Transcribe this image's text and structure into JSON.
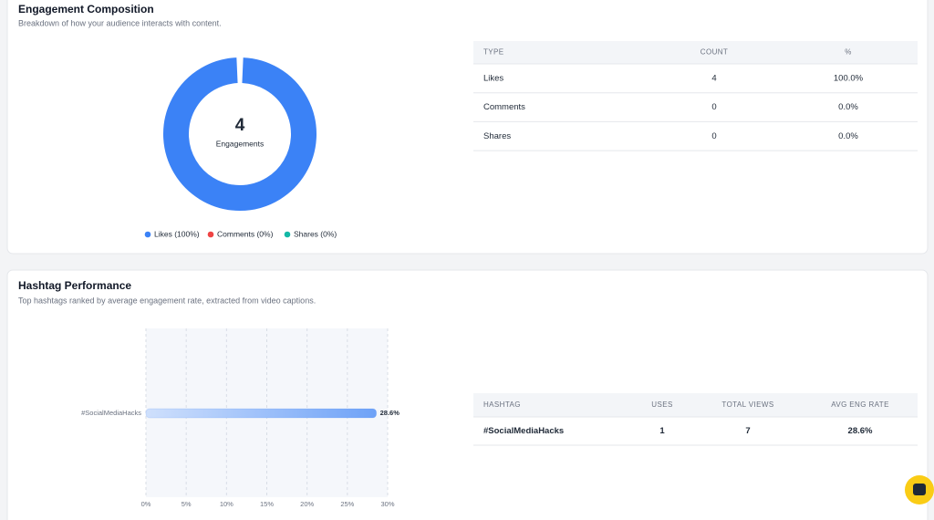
{
  "engagement": {
    "title": "Engagement Composition",
    "subtitle": "Breakdown of how your audience interacts with content.",
    "chart": {
      "type": "pie",
      "center_value": 4,
      "center_label": "Engagements",
      "categories": [
        "Likes",
        "Comments",
        "Shares"
      ],
      "values": [
        100,
        0,
        0
      ],
      "legend_labels": [
        "Likes (100%)",
        "Comments (0%)",
        "Shares (0%)"
      ],
      "colors": [
        "#3b82f6",
        "#ef4444",
        "#14b8a6"
      ]
    },
    "table": {
      "columns": [
        "TYPE",
        "COUNT",
        "%"
      ],
      "rows": [
        [
          "Likes",
          4,
          "100.0%"
        ],
        [
          "Comments",
          0,
          "0.0%"
        ],
        [
          "Shares",
          0,
          "0.0%"
        ]
      ]
    }
  },
  "hashtags": {
    "title": "Hashtag Performance",
    "subtitle": "Top hashtags ranked by average engagement rate, extracted from video captions.",
    "chart": {
      "type": "bar",
      "orientation": "horizontal",
      "categories": [
        "#SocialMediaHacks"
      ],
      "values": [
        28.6
      ],
      "value_labels": [
        "28.6%"
      ],
      "color": "#3b82f6",
      "xlim": [
        0,
        30
      ],
      "xticks": [
        {
          "value": 0,
          "label": "0%"
        },
        {
          "value": 5,
          "label": "5%"
        },
        {
          "value": 10,
          "label": "10%"
        },
        {
          "value": 15,
          "label": "15%"
        },
        {
          "value": 20,
          "label": "20%"
        },
        {
          "value": 25,
          "label": "25%"
        },
        {
          "value": 30,
          "label": "30%"
        }
      ],
      "grid": true
    },
    "table": {
      "columns": [
        "HASHTAG",
        "USES",
        "TOTAL VIEWS",
        "AVG ENG RATE"
      ],
      "rows": [
        [
          "#SocialMediaHacks",
          1,
          7,
          "28.6%"
        ]
      ]
    }
  }
}
